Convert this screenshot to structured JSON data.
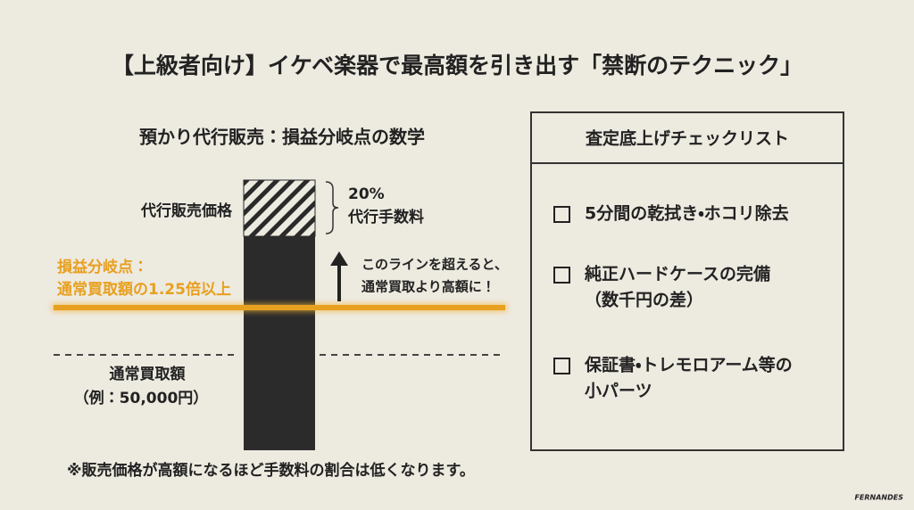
{
  "title": "【上級者向け】イケベ楽器で最高額を引き出す「禁断のテクニック」",
  "left": {
    "heading": "預かり代行販売：損益分岐点の数学",
    "price_label": "代行販売価格",
    "fee_percent": "20%",
    "fee_label": "代行手数料",
    "breakeven_label": [
      "損益分岐点：",
      "通常買取額の1.25倍以上"
    ],
    "arrow_note": [
      "このラインを超えると、",
      "通常買取より高額に！"
    ],
    "normal_label": [
      "通常買取額",
      "（例：50,000円）"
    ],
    "footnote": "※販売価格が高額になるほど手数料の割合は低くなります。"
  },
  "checklist": {
    "heading": "査定底上げチェックリスト",
    "items": [
      [
        "5分間の乾拭き・ホコリ除去"
      ],
      [
        "純正ハードケースの完備",
        "（数千円の差）"
      ],
      [
        "保証書・トレモロアーム等の",
        "小パーツ"
      ]
    ]
  },
  "logo": "FERNANDES"
}
